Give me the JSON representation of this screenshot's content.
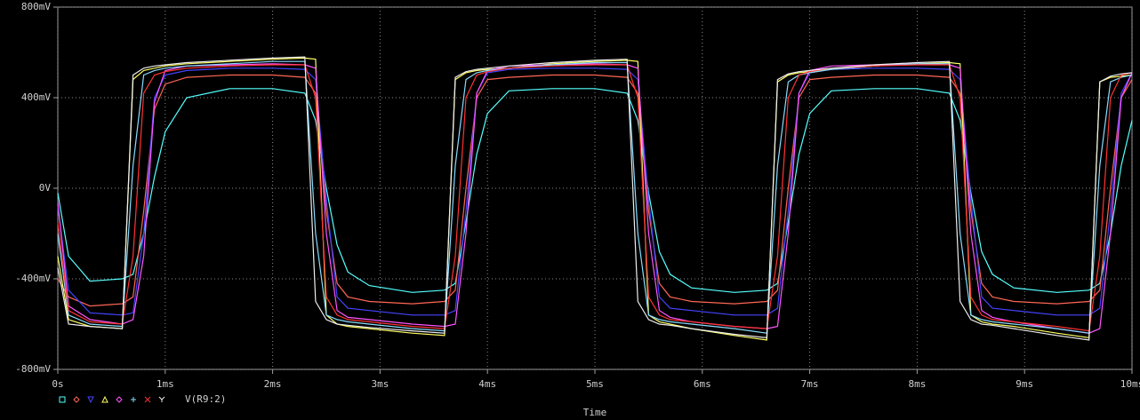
{
  "chart_data": {
    "type": "line",
    "xlabel": "Time",
    "trace_label": "V(R9:2)",
    "x": [
      0,
      0.1,
      0.3,
      0.6,
      0.7,
      0.8,
      0.9,
      1.0,
      1.2,
      1.6,
      2.0,
      2.3,
      2.4,
      2.5,
      2.6,
      2.7,
      2.9,
      3.3,
      3.6,
      3.7,
      3.8,
      3.9,
      4.0,
      4.2,
      4.6,
      5.0,
      5.3,
      5.4,
      5.5,
      5.6,
      5.7,
      5.9,
      6.3,
      6.6,
      6.7,
      6.8,
      6.9,
      7.0,
      7.2,
      7.6,
      8.0,
      8.3,
      8.4,
      8.5,
      8.6,
      8.7,
      8.9,
      9.3,
      9.6,
      9.7,
      9.8,
      9.9,
      10.0
    ],
    "xlim": [
      0,
      10
    ],
    "xticks": [
      {
        "value": 0,
        "label": "0s"
      },
      {
        "value": 1,
        "label": "1ms"
      },
      {
        "value": 2,
        "label": "2ms"
      },
      {
        "value": 3,
        "label": "3ms"
      },
      {
        "value": 4,
        "label": "4ms"
      },
      {
        "value": 5,
        "label": "5ms"
      },
      {
        "value": 6,
        "label": "6ms"
      },
      {
        "value": 7,
        "label": "7ms"
      },
      {
        "value": 8,
        "label": "8ms"
      },
      {
        "value": 9,
        "label": "9ms"
      },
      {
        "value": 10,
        "label": "10ms"
      }
    ],
    "ylim": [
      -800,
      800
    ],
    "yticks": [
      {
        "value": -800,
        "label": "-800mV"
      },
      {
        "value": -400,
        "label": "-400mV"
      },
      {
        "value": 0,
        "label": "0V"
      },
      {
        "value": 400,
        "label": "400mV"
      },
      {
        "value": 800,
        "label": "800mV"
      }
    ],
    "grid": true,
    "series": [
      {
        "color": "#55ffff",
        "marker": "square",
        "values": [
          -20,
          -300,
          -410,
          -400,
          -380,
          -200,
          50,
          250,
          400,
          440,
          440,
          420,
          300,
          0,
          -250,
          -370,
          -430,
          -460,
          -450,
          -420,
          -150,
          150,
          330,
          430,
          440,
          440,
          420,
          300,
          -20,
          -280,
          -380,
          -440,
          -460,
          -450,
          -420,
          -150,
          150,
          330,
          430,
          440,
          440,
          420,
          300,
          -20,
          -280,
          -380,
          -440,
          -460,
          -450,
          -420,
          -200,
          100,
          300
        ]
      },
      {
        "color": "#ff6655",
        "marker": "diamond",
        "values": [
          -400,
          -480,
          -520,
          -510,
          -480,
          -100,
          350,
          460,
          490,
          500,
          500,
          490,
          420,
          -100,
          -420,
          -480,
          -500,
          -510,
          -500,
          -450,
          0,
          400,
          480,
          490,
          500,
          500,
          490,
          420,
          -100,
          -420,
          -480,
          -500,
          -510,
          -500,
          -450,
          0,
          400,
          480,
          490,
          500,
          500,
          490,
          420,
          -100,
          -420,
          -480,
          -500,
          -510,
          -500,
          -450,
          0,
          400,
          480
        ]
      },
      {
        "color": "#4444ff",
        "marker": "down",
        "values": [
          -80,
          -450,
          -550,
          -560,
          -550,
          -200,
          400,
          500,
          520,
          530,
          530,
          525,
          480,
          -50,
          -480,
          -530,
          -540,
          -560,
          -560,
          -540,
          -100,
          420,
          510,
          525,
          530,
          530,
          525,
          480,
          -50,
          -480,
          -530,
          -540,
          -560,
          -560,
          -530,
          -100,
          420,
          510,
          525,
          530,
          530,
          525,
          480,
          -50,
          -480,
          -530,
          -540,
          -560,
          -560,
          -530,
          -100,
          420,
          510
        ]
      },
      {
        "color": "#ffff66",
        "marker": "up",
        "values": [
          -300,
          -580,
          -610,
          -620,
          480,
          520,
          530,
          540,
          550,
          560,
          570,
          575,
          570,
          -560,
          -600,
          -610,
          -620,
          -640,
          -650,
          480,
          510,
          520,
          525,
          530,
          550,
          560,
          565,
          560,
          -560,
          -590,
          -600,
          -620,
          -650,
          -670,
          470,
          500,
          510,
          515,
          525,
          540,
          550,
          555,
          550,
          -560,
          -590,
          -600,
          -610,
          -640,
          -660,
          470,
          490,
          495,
          500
        ]
      },
      {
        "color": "#ff55ff",
        "marker": "diamond",
        "values": [
          -60,
          -520,
          -580,
          -600,
          -580,
          -300,
          380,
          520,
          540,
          545,
          550,
          545,
          530,
          -200,
          -540,
          -570,
          -580,
          -600,
          -610,
          -600,
          -200,
          420,
          520,
          540,
          545,
          550,
          545,
          530,
          -200,
          -540,
          -570,
          -590,
          -610,
          -620,
          -610,
          -200,
          420,
          520,
          540,
          545,
          550,
          545,
          530,
          -200,
          -540,
          -570,
          -590,
          -620,
          -640,
          -620,
          -200,
          400,
          510
        ]
      },
      {
        "color": "#88ddff",
        "marker": "plus",
        "values": [
          -200,
          -560,
          -600,
          -610,
          100,
          500,
          520,
          530,
          540,
          550,
          560,
          560,
          -200,
          -560,
          -580,
          -590,
          -600,
          -620,
          -630,
          100,
          480,
          510,
          520,
          530,
          545,
          555,
          555,
          -200,
          -560,
          -580,
          -590,
          -600,
          -620,
          -640,
          100,
          470,
          500,
          510,
          525,
          540,
          550,
          550,
          -200,
          -560,
          -580,
          -590,
          -600,
          -620,
          -640,
          100,
          470,
          490,
          500
        ]
      },
      {
        "color": "#ff3333",
        "marker": "cross",
        "values": [
          -150,
          -540,
          -590,
          -600,
          -300,
          420,
          500,
          515,
          530,
          540,
          545,
          545,
          400,
          -480,
          -560,
          -580,
          -590,
          -610,
          -620,
          -300,
          400,
          500,
          515,
          530,
          540,
          545,
          545,
          400,
          -480,
          -560,
          -580,
          -590,
          -610,
          -620,
          -300,
          400,
          500,
          515,
          530,
          540,
          545,
          545,
          400,
          -480,
          -560,
          -580,
          -590,
          -610,
          -630,
          -300,
          400,
          500,
          510
        ]
      },
      {
        "color": "#eeeeee",
        "marker": "y",
        "values": [
          -350,
          -600,
          -610,
          -620,
          500,
          530,
          540,
          545,
          555,
          565,
          575,
          580,
          -500,
          -580,
          -600,
          -605,
          -615,
          -630,
          -640,
          490,
          515,
          525,
          530,
          540,
          555,
          565,
          570,
          -500,
          -580,
          -600,
          -605,
          -620,
          -645,
          -660,
          480,
          505,
          515,
          520,
          530,
          545,
          555,
          560,
          -500,
          -580,
          -600,
          -605,
          -620,
          -650,
          -670,
          470,
          495,
          505,
          510
        ]
      }
    ]
  }
}
